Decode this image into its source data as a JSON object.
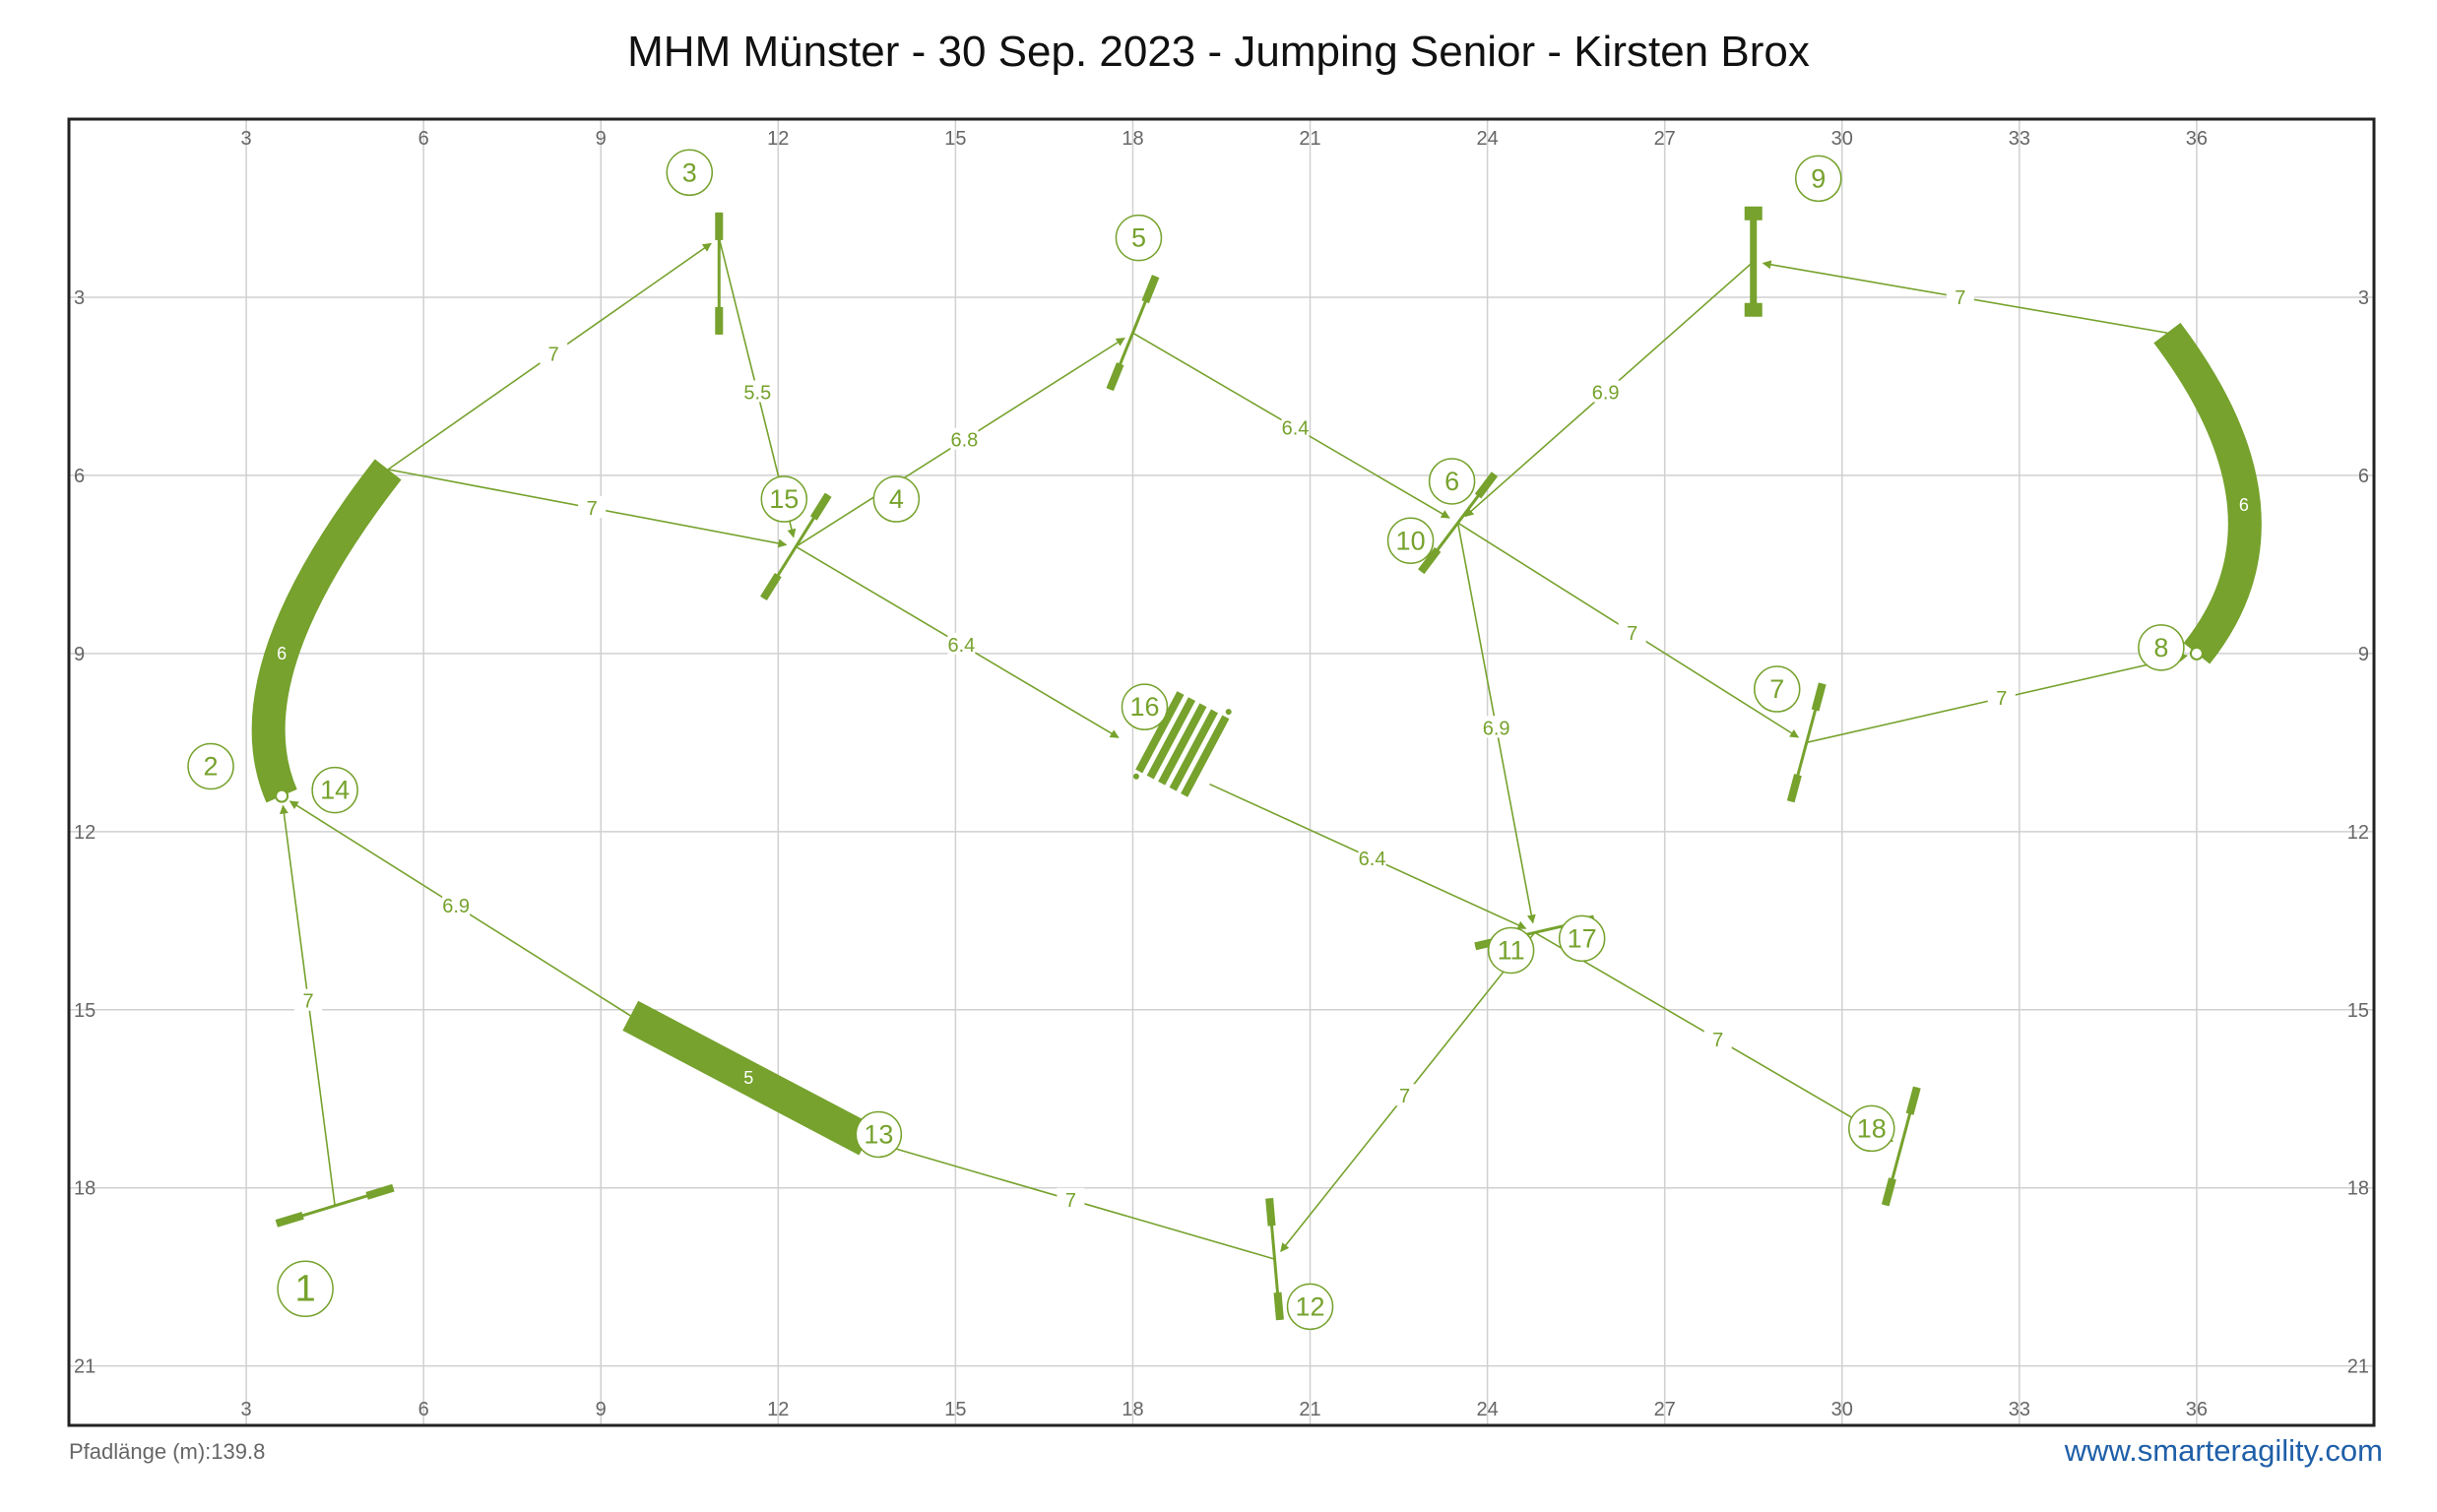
{
  "title": "MHM Münster - 30 Sep. 2023 - Jumping Senior - Kirsten Brox",
  "footer": {
    "path_length": "Pfadlänge (m):139.8",
    "website": "www.smarteragility.com"
  },
  "colors": {
    "obstacle": "#76a22d",
    "path": "#76a22d",
    "grid": "#d0d0d0",
    "frame": "#222222",
    "link": "#1f5fa8"
  },
  "axes": {
    "x_ticks": [
      "3",
      "6",
      "9",
      "12",
      "15",
      "18",
      "21",
      "24",
      "27",
      "30",
      "33",
      "36"
    ],
    "y_ticks": [
      "3",
      "6",
      "9",
      "12",
      "15",
      "18",
      "21"
    ],
    "x_range": [
      0,
      39
    ],
    "y_range": [
      0,
      22
    ]
  },
  "obstacles": [
    {
      "type": "jump",
      "center": [
        4.5,
        18.3
      ],
      "angle": -17
    },
    {
      "type": "tunnel",
      "points": [
        [
          5.4,
          5.9
        ],
        [
          3.6,
          9.0
        ],
        [
          3.6,
          11.4
        ]
      ],
      "label": "6"
    },
    {
      "type": "jump",
      "center": [
        11.0,
        2.6
      ],
      "angle": 90
    },
    {
      "type": "jump",
      "center": [
        12.3,
        7.2
      ],
      "angle": 122
    },
    {
      "type": "jump",
      "center": [
        18.0,
        3.6
      ],
      "angle": 112
    },
    {
      "type": "jump",
      "center": [
        23.5,
        6.8
      ],
      "angle": 127
    },
    {
      "type": "jump",
      "center": [
        29.4,
        10.5
      ],
      "angle": 105
    },
    {
      "type": "tunnel",
      "points": [
        [
          35.5,
          3.6
        ],
        [
          36.8,
          6.5
        ],
        [
          36.0,
          9.0
        ]
      ],
      "label": "6"
    },
    {
      "type": "wall",
      "center": [
        28.5,
        2.4
      ],
      "angle": 90
    },
    {
      "type": "jump",
      "center": [
        24.8,
        13.7
      ],
      "angle": -13
    },
    {
      "type": "jump",
      "center": [
        20.4,
        19.2
      ],
      "angle": 85
    },
    {
      "type": "tunnel",
      "points": [
        [
          9.5,
          15.1
        ],
        [
          13.5,
          17.2
        ]
      ],
      "label": "5"
    },
    {
      "type": "weaves",
      "center": [
        18.8,
        10.6
      ],
      "angle": 118
    },
    {
      "type": "jump",
      "center": [
        31.0,
        17.3
      ],
      "angle": 105
    }
  ],
  "numbers": [
    {
      "n": "1",
      "pos": [
        4.0,
        19.7
      ],
      "big": true
    },
    {
      "n": "2",
      "pos": [
        2.4,
        10.9
      ]
    },
    {
      "n": "14",
      "pos": [
        4.5,
        11.3
      ]
    },
    {
      "n": "3",
      "pos": [
        10.5,
        0.9
      ]
    },
    {
      "n": "15",
      "pos": [
        12.1,
        6.4
      ]
    },
    {
      "n": "4",
      "pos": [
        14.0,
        6.4
      ]
    },
    {
      "n": "5",
      "pos": [
        18.1,
        2.0
      ]
    },
    {
      "n": "6",
      "pos": [
        23.4,
        6.1
      ]
    },
    {
      "n": "10",
      "pos": [
        22.7,
        7.1
      ]
    },
    {
      "n": "9",
      "pos": [
        29.6,
        1.0
      ]
    },
    {
      "n": "8",
      "pos": [
        35.4,
        8.9
      ]
    },
    {
      "n": "7",
      "pos": [
        28.9,
        9.6
      ]
    },
    {
      "n": "16",
      "pos": [
        18.2,
        9.9
      ]
    },
    {
      "n": "11",
      "pos": [
        24.4,
        14.0
      ]
    },
    {
      "n": "17",
      "pos": [
        25.6,
        13.8
      ]
    },
    {
      "n": "18",
      "pos": [
        30.5,
        17.0
      ]
    },
    {
      "n": "13",
      "pos": [
        13.7,
        17.1
      ]
    },
    {
      "n": "12",
      "pos": [
        21.0,
        20.0
      ]
    }
  ],
  "segments": [
    {
      "from": [
        4.5,
        18.3
      ],
      "to": [
        3.6,
        11.4
      ],
      "label": "7"
    },
    {
      "from": [
        5.4,
        5.9
      ],
      "to": [
        11.0,
        2.0
      ],
      "label": "7"
    },
    {
      "from": [
        11.0,
        2.0
      ],
      "to": [
        12.3,
        7.2
      ],
      "label": "5.5"
    },
    {
      "from": [
        5.4,
        5.9
      ],
      "to": [
        12.3,
        7.2
      ],
      "label": "7"
    },
    {
      "from": [
        12.3,
        7.2
      ],
      "to": [
        18.0,
        3.6
      ],
      "label": "6.8"
    },
    {
      "from": [
        18.0,
        3.6
      ],
      "to": [
        23.5,
        6.8
      ],
      "label": "6.4"
    },
    {
      "from": [
        23.5,
        6.8
      ],
      "to": [
        29.4,
        10.5
      ],
      "label": "7"
    },
    {
      "from": [
        29.4,
        10.5
      ],
      "to": [
        36.0,
        9.0
      ],
      "label": "7"
    },
    {
      "from": [
        35.5,
        3.6
      ],
      "to": [
        28.5,
        2.4
      ],
      "label": "7"
    },
    {
      "from": [
        28.5,
        2.4
      ],
      "to": [
        23.5,
        6.8
      ],
      "label": "6.9"
    },
    {
      "from": [
        23.5,
        6.8
      ],
      "to": [
        24.8,
        13.7
      ],
      "label": "6.9"
    },
    {
      "from": [
        24.8,
        13.7
      ],
      "to": [
        20.4,
        19.2
      ],
      "label": "7"
    },
    {
      "from": [
        20.4,
        19.2
      ],
      "to": [
        13.5,
        17.2
      ],
      "label": "7"
    },
    {
      "from": [
        9.5,
        15.1
      ],
      "to": [
        3.6,
        11.4
      ],
      "label": "6.9"
    },
    {
      "from": [
        12.3,
        7.2
      ],
      "to": [
        17.9,
        10.5
      ],
      "label": "6.4"
    },
    {
      "from": [
        19.3,
        11.2
      ],
      "to": [
        24.8,
        13.7
      ],
      "label": "6.4"
    },
    {
      "from": [
        24.8,
        13.7
      ],
      "to": [
        31.0,
        17.3
      ],
      "label": "7"
    }
  ]
}
